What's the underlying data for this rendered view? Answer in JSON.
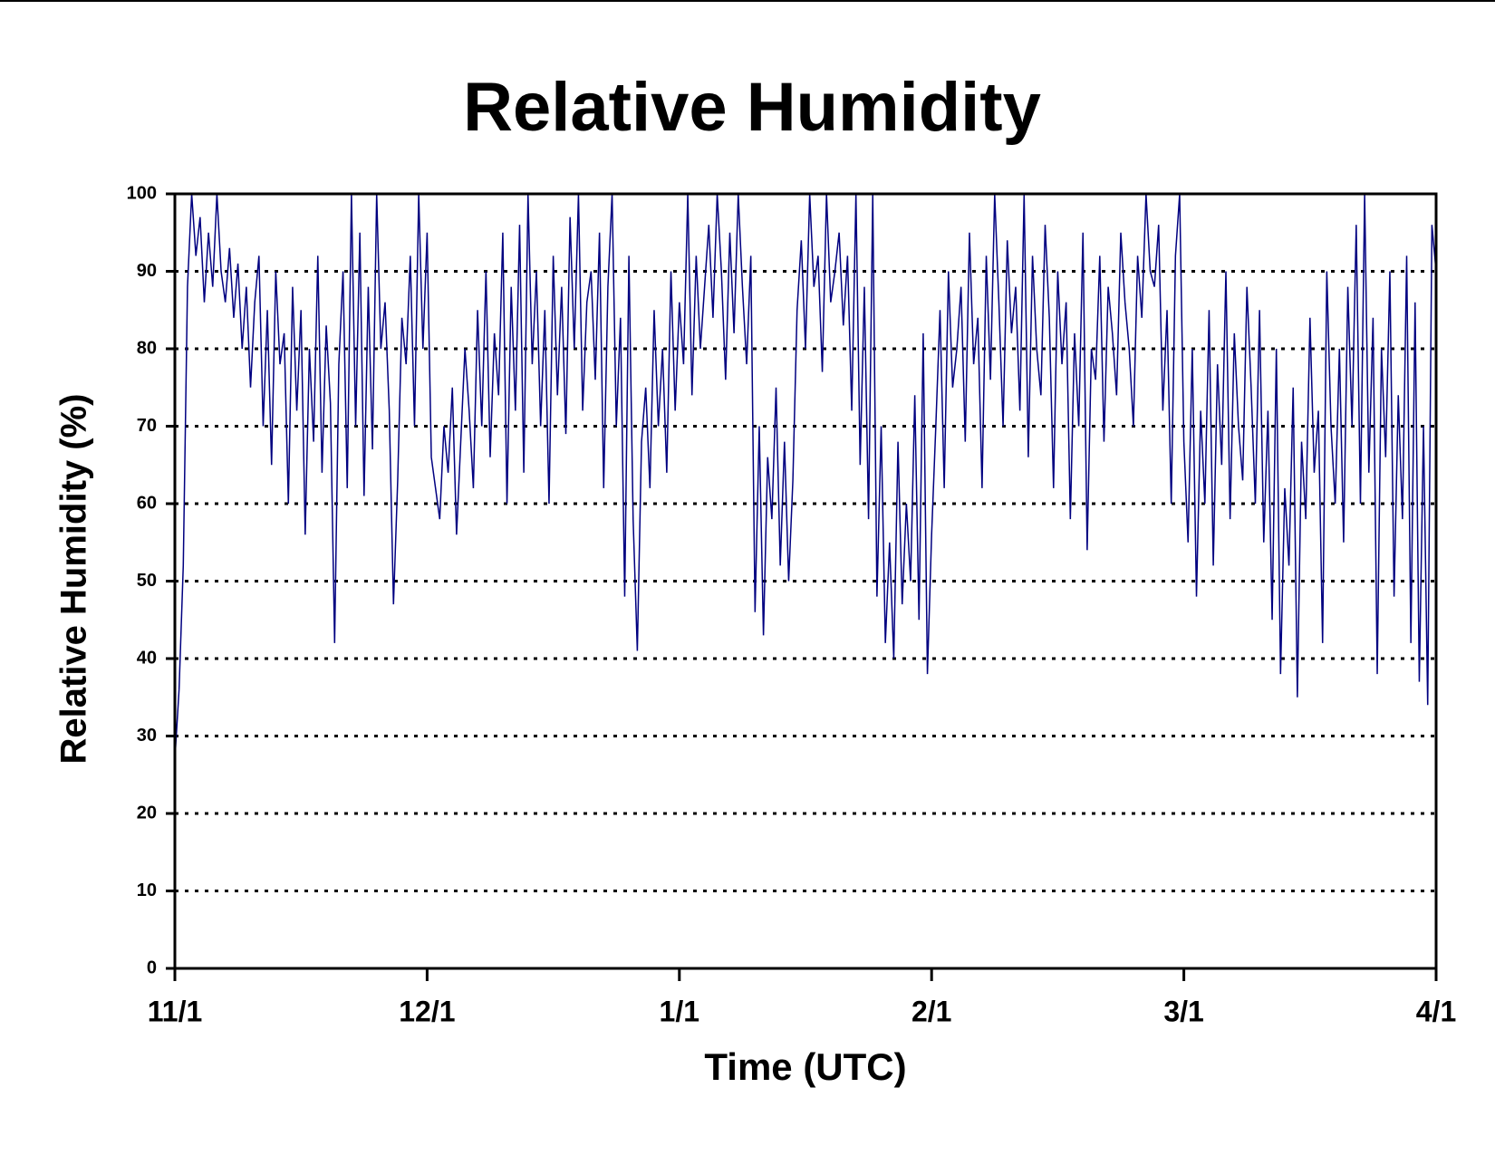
{
  "chart_data": {
    "type": "line",
    "title": "Relative Humidity",
    "xlabel": "Time (UTC)",
    "ylabel": "Relative Humidity (%)",
    "x": [
      0,
      0.5,
      1,
      1.5,
      2,
      2.5,
      3,
      3.5,
      4,
      4.5,
      5,
      5.5,
      6,
      6.5,
      7,
      7.5,
      8,
      8.5,
      9,
      9.5,
      10,
      10.5,
      11,
      11.5,
      12,
      12.5,
      13,
      13.5,
      14,
      14.5,
      15,
      15.5,
      16,
      16.5,
      17,
      17.5,
      18,
      18.5,
      19,
      19.5,
      20,
      20.5,
      21,
      21.5,
      22,
      22.5,
      23,
      23.5,
      24,
      24.5,
      25,
      25.5,
      26,
      26.5,
      27,
      27.5,
      28,
      28.5,
      29,
      29.5,
      30,
      30.5,
      31,
      31.5,
      32,
      32.5,
      33,
      33.5,
      34,
      34.5,
      35,
      35.5,
      36,
      36.5,
      37,
      37.5,
      38,
      38.5,
      39,
      39.5,
      40,
      40.5,
      41,
      41.5,
      42,
      42.5,
      43,
      43.5,
      44,
      44.5,
      45,
      45.5,
      46,
      46.5,
      47,
      47.5,
      48,
      48.5,
      49,
      49.5,
      50,
      50.5,
      51,
      51.5,
      52,
      52.5,
      53,
      53.5,
      54,
      54.5,
      55,
      55.5,
      56,
      56.5,
      57,
      57.5,
      58,
      58.5,
      59,
      59.5,
      60,
      60.5,
      61,
      61.5,
      62,
      62.5,
      63,
      63.5,
      64,
      64.5,
      65,
      65.5,
      66,
      66.5,
      67,
      67.5,
      68,
      68.5,
      69,
      69.5,
      70,
      70.5,
      71,
      71.5,
      72,
      72.5,
      73,
      73.5,
      74,
      74.5,
      75,
      75.5,
      76,
      76.5,
      77,
      77.5,
      78,
      78.5,
      79,
      79.5,
      80,
      80.5,
      81,
      81.5,
      82,
      82.5,
      83,
      83.5,
      84,
      84.5,
      85,
      85.5,
      86,
      86.5,
      87,
      87.5,
      88,
      88.5,
      89,
      89.5,
      90,
      90.5,
      91,
      91.5,
      92,
      92.5,
      93,
      93.5,
      94,
      94.5,
      95,
      95.5,
      96,
      96.5,
      97,
      97.5,
      98,
      98.5,
      99,
      99.5,
      100,
      100.5,
      101,
      101.5,
      102,
      102.5,
      103,
      103.5,
      104,
      104.5,
      105,
      105.5,
      106,
      106.5,
      107,
      107.5,
      108,
      108.5,
      109,
      109.5,
      110,
      110.5,
      111,
      111.5,
      112,
      112.5,
      113,
      113.5,
      114,
      114.5,
      115,
      115.5,
      116,
      116.5,
      117,
      117.5,
      118,
      118.5,
      119,
      119.5,
      120,
      120.5,
      121,
      121.5,
      122,
      122.5,
      123,
      123.5,
      124,
      124.5,
      125,
      125.5,
      126,
      126.5,
      127,
      127.5,
      128,
      128.5,
      129,
      129.5,
      130,
      130.5,
      131,
      131.5,
      132,
      132.5,
      133,
      133.5,
      134,
      134.5,
      135,
      135.5,
      136,
      136.5,
      137,
      137.5,
      138,
      138.5,
      139,
      139.5,
      140,
      140.5,
      141,
      141.5,
      142,
      142.5,
      143,
      143.5,
      144,
      144.5,
      145,
      145.5,
      146,
      146.5,
      147,
      147.5,
      148,
      148.5,
      149,
      149.5,
      150
    ],
    "values": [
      27,
      36,
      52,
      88,
      100,
      92,
      97,
      86,
      95,
      88,
      100,
      90,
      86,
      93,
      84,
      91,
      80,
      88,
      75,
      86,
      92,
      70,
      85,
      65,
      90,
      78,
      82,
      60,
      88,
      72,
      85,
      56,
      80,
      68,
      92,
      64,
      83,
      73,
      42,
      78,
      90,
      62,
      100,
      70,
      95,
      61,
      88,
      67,
      100,
      80,
      86,
      72,
      47,
      63,
      84,
      78,
      92,
      70,
      100,
      80,
      95,
      66,
      62,
      58,
      70,
      64,
      75,
      56,
      68,
      80,
      72,
      62,
      85,
      70,
      90,
      66,
      82,
      74,
      95,
      60,
      88,
      72,
      96,
      64,
      100,
      78,
      90,
      70,
      85,
      60,
      92,
      74,
      88,
      69,
      97,
      80,
      100,
      72,
      86,
      90,
      76,
      95,
      62,
      88,
      100,
      70,
      84,
      48,
      92,
      58,
      41,
      68,
      75,
      62,
      85,
      70,
      80,
      64,
      90,
      72,
      86,
      78,
      100,
      74,
      92,
      80,
      88,
      96,
      84,
      100,
      90,
      76,
      95,
      82,
      100,
      88,
      78,
      92,
      46,
      70,
      43,
      66,
      58,
      75,
      52,
      68,
      50,
      63,
      85,
      94,
      80,
      100,
      88,
      92,
      77,
      100,
      86,
      90,
      95,
      83,
      92,
      72,
      100,
      65,
      88,
      58,
      100,
      48,
      70,
      42,
      55,
      40,
      68,
      47,
      60,
      50,
      74,
      45,
      82,
      38,
      56,
      70,
      85,
      62,
      90,
      75,
      80,
      88,
      68,
      95,
      78,
      84,
      62,
      92,
      76,
      100,
      86,
      70,
      94,
      82,
      88,
      72,
      100,
      66,
      92,
      80,
      74,
      96,
      84,
      62,
      90,
      78,
      86,
      58,
      82,
      70,
      95,
      54,
      80,
      76,
      92,
      68,
      88,
      82,
      74,
      95,
      86,
      80,
      70,
      92,
      84,
      100,
      90,
      88,
      96,
      72,
      85,
      60,
      92,
      100,
      68,
      55,
      80,
      48,
      72,
      60,
      85,
      52,
      78,
      65,
      90,
      58,
      82,
      70,
      63,
      88,
      75,
      60,
      85,
      55,
      72,
      45,
      80,
      38,
      62,
      52,
      75,
      35,
      68,
      58,
      84,
      64,
      72,
      42,
      90,
      70,
      60,
      80,
      55,
      88,
      70,
      96,
      60,
      100,
      64,
      84,
      38,
      80,
      66,
      90,
      48,
      74,
      58,
      92,
      42,
      86,
      37,
      70,
      34,
      96,
      90
    ],
    "color": "#000080",
    "xlim": [
      0,
      150
    ],
    "xticks": [
      {
        "value": 0,
        "label": "11/1"
      },
      {
        "value": 30,
        "label": "12/1"
      },
      {
        "value": 60,
        "label": "1/1"
      },
      {
        "value": 90,
        "label": "2/1"
      },
      {
        "value": 120,
        "label": "3/1"
      },
      {
        "value": 150,
        "label": "4/1"
      }
    ],
    "ylim": [
      0,
      100
    ],
    "yticks": [
      0,
      10,
      20,
      30,
      40,
      50,
      60,
      70,
      80,
      90,
      100
    ],
    "grid": true
  }
}
